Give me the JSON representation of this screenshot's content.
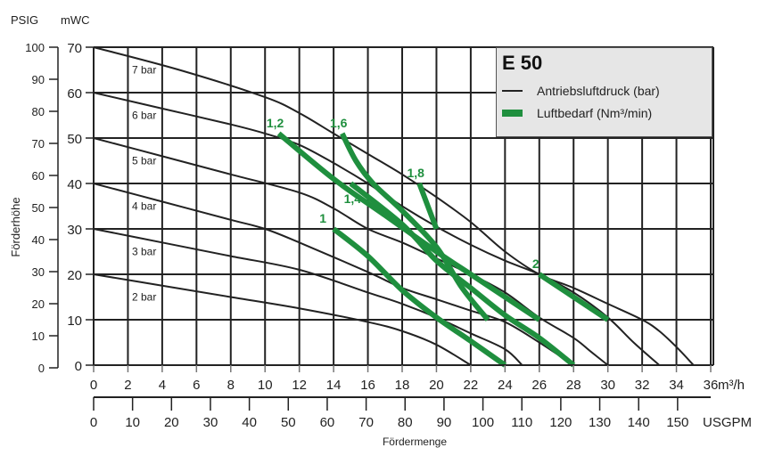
{
  "chart_data": {
    "type": "line",
    "title": "E 50",
    "ylabel": "Förderhöhe",
    "xlabel": "Fördermenge",
    "y_units_left": "PSIG",
    "y_units_right": "mWC",
    "x_units": "m³/h",
    "x2_units": "USGPM",
    "xlim": [
      0,
      36
    ],
    "ylim": [
      0,
      70
    ],
    "psig_lim": [
      0,
      100
    ],
    "x2_lim": [
      0,
      150
    ],
    "grid": true,
    "x_ticks": [
      "0",
      "2",
      "4",
      "6",
      "8",
      "10",
      "12",
      "14",
      "16",
      "18",
      "20",
      "22",
      "24",
      "26",
      "28",
      "30",
      "32",
      "34",
      "36"
    ],
    "y_ticks": [
      "0",
      "10",
      "20",
      "30",
      "40",
      "50",
      "60",
      "70"
    ],
    "psig_ticks": [
      "0",
      "10",
      "20",
      "30",
      "40",
      "50",
      "60",
      "70",
      "80",
      "90",
      "100"
    ],
    "x2_ticks": [
      "0",
      "10",
      "20",
      "30",
      "40",
      "50",
      "60",
      "70",
      "80",
      "90",
      "100",
      "110",
      "120",
      "130",
      "140",
      "150"
    ],
    "legend": {
      "placement": "top-right",
      "entries": [
        {
          "label": "Antriebsluftdruck (bar)",
          "style": "thin-black-line"
        },
        {
          "label": "Luftbedarf (Nm³/min)",
          "style": "thick-green-line"
        }
      ]
    },
    "colors": {
      "pressure": "#222222",
      "air": "#1f8f3e",
      "legend_bg": "#e6e6e6"
    },
    "pressure_series": [
      {
        "name": "2 bar",
        "points": [
          [
            0,
            20
          ],
          [
            4,
            17.5
          ],
          [
            8,
            15
          ],
          [
            12,
            12.5
          ],
          [
            16,
            9.5
          ],
          [
            18,
            7.5
          ],
          [
            20,
            4.5
          ],
          [
            22,
            0
          ]
        ]
      },
      {
        "name": "3 bar",
        "points": [
          [
            0,
            30
          ],
          [
            4,
            27
          ],
          [
            8,
            24
          ],
          [
            12,
            21
          ],
          [
            16,
            16
          ],
          [
            18,
            13.5
          ],
          [
            20,
            10.5
          ],
          [
            22,
            7
          ],
          [
            24,
            3.5
          ],
          [
            25,
            0
          ]
        ]
      },
      {
        "name": "4 bar",
        "points": [
          [
            0,
            40
          ],
          [
            4,
            36
          ],
          [
            8,
            32
          ],
          [
            10,
            30
          ],
          [
            12,
            27
          ],
          [
            16,
            20.5
          ],
          [
            18,
            17
          ],
          [
            20,
            14.5
          ],
          [
            22,
            12
          ],
          [
            24,
            9.5
          ],
          [
            26,
            5
          ],
          [
            28,
            0
          ]
        ]
      },
      {
        "name": "5 bar",
        "points": [
          [
            0,
            50
          ],
          [
            4,
            46
          ],
          [
            8,
            42
          ],
          [
            12,
            38
          ],
          [
            14,
            34.5
          ],
          [
            16,
            30
          ],
          [
            18,
            27
          ],
          [
            20,
            23.5
          ],
          [
            22,
            20
          ],
          [
            24,
            16
          ],
          [
            26,
            10.5
          ],
          [
            28,
            6
          ],
          [
            29,
            3
          ],
          [
            30,
            0
          ]
        ]
      },
      {
        "name": "6 bar",
        "points": [
          [
            0,
            60
          ],
          [
            4,
            56.5
          ],
          [
            8,
            53
          ],
          [
            10,
            51
          ],
          [
            12,
            48.5
          ],
          [
            14,
            44.5
          ],
          [
            16,
            40
          ],
          [
            18,
            35
          ],
          [
            20,
            30.5
          ],
          [
            22,
            26.5
          ],
          [
            24,
            23
          ],
          [
            26,
            20
          ],
          [
            28,
            16
          ],
          [
            30,
            10.5
          ],
          [
            31.5,
            5
          ],
          [
            33,
            0
          ]
        ]
      },
      {
        "name": "7 bar",
        "points": [
          [
            0,
            70
          ],
          [
            5,
            65
          ],
          [
            10,
            59
          ],
          [
            12,
            55.5
          ],
          [
            14,
            51
          ],
          [
            16,
            46.5
          ],
          [
            18,
            42
          ],
          [
            20,
            37
          ],
          [
            22,
            31.5
          ],
          [
            24,
            25
          ],
          [
            26,
            20
          ],
          [
            28,
            17
          ],
          [
            30,
            13.5
          ],
          [
            32,
            10
          ],
          [
            33,
            7.5
          ],
          [
            34,
            4
          ],
          [
            35,
            0
          ]
        ]
      }
    ],
    "air_series": [
      {
        "name": "1",
        "points": [
          [
            14,
            30
          ],
          [
            16,
            24
          ],
          [
            18,
            16.5
          ],
          [
            20,
            10.5
          ],
          [
            22,
            5.3
          ],
          [
            24,
            0
          ]
        ]
      },
      {
        "name": "1,2",
        "points": [
          [
            10.8,
            51
          ],
          [
            14,
            41
          ],
          [
            17,
            33
          ],
          [
            20,
            25
          ],
          [
            22,
            20
          ],
          [
            24,
            15
          ],
          [
            26,
            10
          ]
        ]
      },
      {
        "name": "1,4",
        "points": [
          [
            15,
            40
          ],
          [
            18,
            31
          ],
          [
            20,
            23
          ],
          [
            22,
            17
          ],
          [
            24,
            11
          ],
          [
            26,
            6
          ],
          [
            28,
            0
          ]
        ]
      },
      {
        "name": "1,6",
        "points": [
          [
            14.5,
            51
          ],
          [
            15.3,
            45
          ],
          [
            16.3,
            40
          ],
          [
            18,
            34
          ],
          [
            20,
            26
          ],
          [
            21.5,
            17
          ],
          [
            23,
            10
          ]
        ]
      },
      {
        "name": "1,8",
        "points": [
          [
            19,
            40
          ],
          [
            20,
            30
          ]
        ]
      },
      {
        "name": "2",
        "points": [
          [
            26,
            20
          ],
          [
            30,
            10
          ]
        ]
      }
    ]
  }
}
